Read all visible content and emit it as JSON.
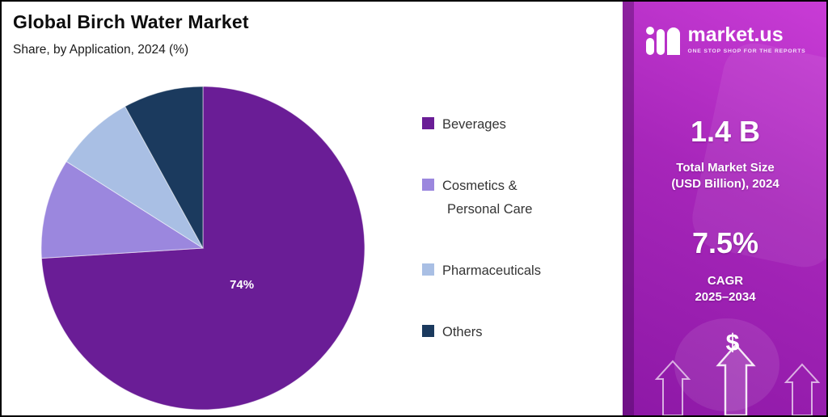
{
  "header": {
    "title": "Global Birch Water Market",
    "subtitle": "Share, by Application, 2024 (%)"
  },
  "chart_data": {
    "type": "pie",
    "title": "Global Birch Water Market",
    "subtitle": "Share, by Application, 2024 (%)",
    "unit": "%",
    "year": "2024",
    "start_angle_deg": 0,
    "direction": "clockwise",
    "legend_position": "right",
    "slices": [
      {
        "label": "Beverages",
        "value": 74,
        "color": "#6a1d96",
        "label_text": "74%"
      },
      {
        "label": "Cosmetics & Personal Care",
        "value": 10,
        "color": "#9b87de",
        "legend_lines": [
          "Cosmetics &",
          "Personal Care"
        ]
      },
      {
        "label": "Pharmaceuticals",
        "value": 8,
        "color": "#a9bfe4"
      },
      {
        "label": "Others",
        "value": 8,
        "color": "#1b3a5e"
      }
    ]
  },
  "sidebar": {
    "accent_color": "#a726ba",
    "brand": {
      "name": "market.us",
      "tagline": "ONE STOP SHOP FOR THE REPORTS"
    },
    "stats": [
      {
        "value": "1.4 B",
        "line1": "Total Market Size",
        "line2": "(USD Billion), 2024"
      },
      {
        "value": "7.5%",
        "line1": "CAGR",
        "line2": "2025–2034"
      }
    ],
    "dollar": "$"
  }
}
